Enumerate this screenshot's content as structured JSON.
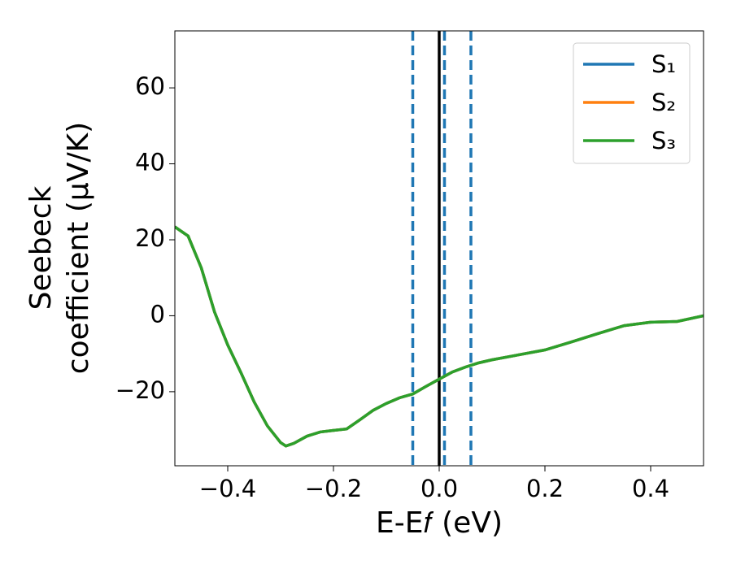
{
  "chart_data": {
    "type": "line",
    "x_label": "E-E𝑓 (eV)",
    "y_label": [
      "Seebeck",
      "coefficient  (μV/K)"
    ],
    "x": [
      -0.5,
      -0.475,
      -0.45,
      -0.425,
      -0.4,
      -0.375,
      -0.35,
      -0.325,
      -0.3,
      -0.29,
      -0.275,
      -0.25,
      -0.225,
      -0.2,
      -0.175,
      -0.15,
      -0.125,
      -0.1,
      -0.075,
      -0.05,
      -0.025,
      0.0,
      0.025,
      0.05,
      0.075,
      0.1,
      0.15,
      0.2,
      0.25,
      0.3,
      0.35,
      0.4,
      0.45,
      0.5
    ],
    "series": [
      {
        "name": "S₁",
        "color": "#1f77b4",
        "values": [
          23.4,
          21,
          12.6,
          1,
          -7.7,
          -15,
          -22.7,
          -29,
          -33.4,
          -34.3,
          -33.6,
          -31.7,
          -30.6,
          -30.2,
          -29.8,
          -27.4,
          -24.9,
          -23.1,
          -21.6,
          -20.6,
          -18.6,
          -16.7,
          -14.8,
          -13.5,
          -12.4,
          -11.6,
          -10.3,
          -9,
          -6.9,
          -4.7,
          -2.6,
          -1.7,
          -1.5,
          0
        ]
      },
      {
        "name": "S₂",
        "color": "#ff7f0e",
        "values": [
          23.4,
          21,
          12.6,
          1,
          -7.7,
          -15,
          -22.7,
          -29,
          -33.4,
          -34.3,
          -33.6,
          -31.7,
          -30.6,
          -30.2,
          -29.8,
          -27.4,
          -24.9,
          -23.1,
          -21.6,
          -20.6,
          -18.6,
          -16.7,
          -14.8,
          -13.5,
          -12.4,
          -11.6,
          -10.3,
          -9,
          -6.9,
          -4.7,
          -2.6,
          -1.7,
          -1.5,
          0
        ]
      },
      {
        "name": "S₃",
        "color": "#2ca02c",
        "values": [
          23.4,
          21,
          12.6,
          1,
          -7.7,
          -15,
          -22.7,
          -29,
          -33.4,
          -34.3,
          -33.6,
          -31.7,
          -30.6,
          -30.2,
          -29.8,
          -27.4,
          -24.9,
          -23.1,
          -21.6,
          -20.6,
          -18.6,
          -16.7,
          -14.8,
          -13.5,
          -12.4,
          -11.6,
          -10.3,
          -9,
          -6.9,
          -4.7,
          -2.6,
          -1.7,
          -1.5,
          0
        ]
      }
    ],
    "vlines": [
      {
        "x": -0.05,
        "color": "#1f77b4",
        "style": "dashed"
      },
      {
        "x": 0.01,
        "color": "#1f77b4",
        "style": "dashed"
      },
      {
        "x": 0.06,
        "color": "#1f77b4",
        "style": "dashed"
      },
      {
        "x": 0,
        "color": "#000000",
        "style": "solid"
      }
    ],
    "xlim": [
      -0.5,
      0.5
    ],
    "ylim": [
      -39.5,
      75
    ],
    "xticks": [
      {
        "value": -0.4,
        "label": "−0.4"
      },
      {
        "value": -0.2,
        "label": "−0.2"
      },
      {
        "value": 0,
        "label": "0.0"
      },
      0.2,
      0.4
    ],
    "yticks": [
      {
        "value": -20,
        "label": "−20"
      },
      0,
      20,
      40,
      60
    ],
    "legend": "upper right",
    "grid": false
  }
}
